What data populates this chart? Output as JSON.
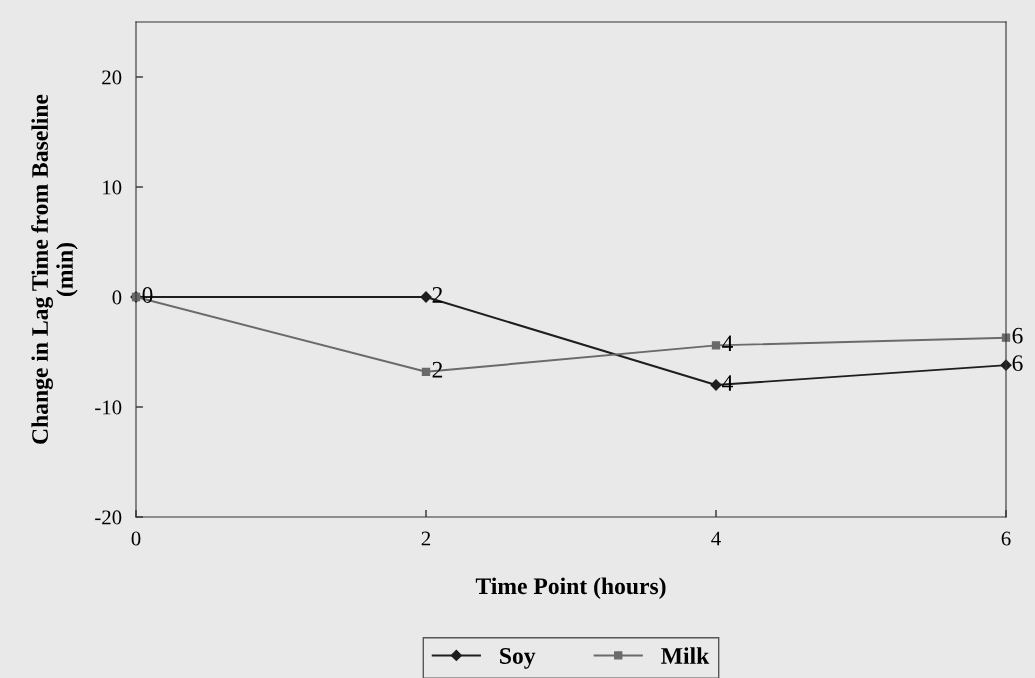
{
  "chart_data": {
    "type": "line",
    "xlabel": "Time Point (hours)",
    "ylabel": "Change in Lag Time from Baseline\n(min)",
    "x": [
      0,
      2,
      4,
      6
    ],
    "series": [
      {
        "name": "Soy",
        "color": "#1e1e1e",
        "marker": "diamond",
        "values": [
          0,
          0,
          -8.0,
          -6.2
        ]
      },
      {
        "name": "Milk",
        "color": "#6a6a6a",
        "marker": "square",
        "values": [
          0,
          -6.8,
          -4.4,
          -3.7
        ]
      }
    ],
    "annotations": [
      {
        "text": "0",
        "x": 0,
        "y": 0
      },
      {
        "text": "2",
        "x": 2,
        "y": 0
      },
      {
        "text": "4",
        "x": 4,
        "y": -8.0
      },
      {
        "text": "6",
        "x": 6,
        "y": -6.2
      },
      {
        "text": "2",
        "x": 2,
        "y": -6.8
      },
      {
        "text": "4",
        "x": 4,
        "y": -4.4
      },
      {
        "text": "6",
        "x": 6,
        "y": -3.7
      }
    ],
    "xlim": [
      0,
      6
    ],
    "xticks": [
      0,
      2,
      4,
      6
    ],
    "ylim": [
      -20,
      25
    ],
    "yticks": [
      -20,
      -10,
      0,
      10,
      20
    ],
    "grid": false,
    "legend": "bottom",
    "line_style": "solid"
  }
}
